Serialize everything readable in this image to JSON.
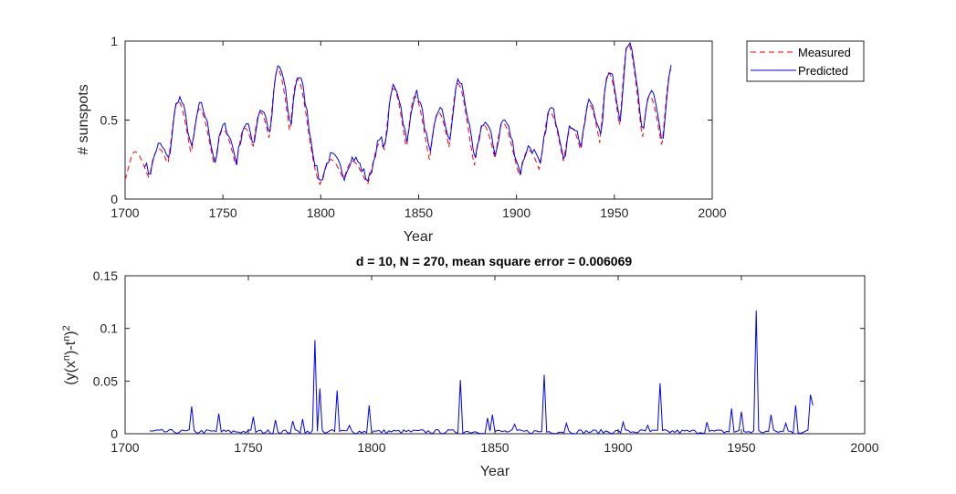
{
  "chart_data": [
    {
      "type": "line",
      "title": "",
      "xlabel": "Year",
      "ylabel": "# sunspots",
      "xlim": [
        1700,
        2000
      ],
      "ylim": [
        0,
        1
      ],
      "xticks": [
        1700,
        1750,
        1800,
        1850,
        1900,
        1950,
        2000
      ],
      "xtick_labels": [
        "1700",
        "1750",
        "1800",
        "1850",
        "1900",
        "1950",
        "2000"
      ],
      "yticks": [
        0,
        0.5,
        1
      ],
      "ytick_labels": [
        "0",
        "0.5",
        "1"
      ],
      "grid": false,
      "legend": {
        "position": "outside-top-right",
        "entries": [
          "Measured",
          "Predicted"
        ]
      },
      "cycles": {
        "years": [
          1705,
          1717,
          1727,
          1738,
          1750,
          1761,
          1769,
          1778,
          1788,
          1805,
          1816,
          1830,
          1837,
          1848,
          1860,
          1870,
          1883,
          1893,
          1906,
          1917,
          1928,
          1937,
          1947,
          1957,
          1968,
          1979
        ],
        "peaks": [
          0.3,
          0.32,
          0.62,
          0.57,
          0.44,
          0.45,
          0.55,
          0.82,
          0.76,
          0.25,
          0.24,
          0.35,
          0.7,
          0.65,
          0.55,
          0.73,
          0.47,
          0.48,
          0.31,
          0.55,
          0.45,
          0.6,
          0.8,
          0.98,
          0.65,
          0.82
        ]
      },
      "series": [
        {
          "name": "Measured",
          "color": "#ff0000",
          "style": "dashed",
          "x_start": 1700,
          "x_end": 1979
        },
        {
          "name": "Predicted",
          "color": "#0000ff",
          "style": "solid",
          "x_start": 1710,
          "x_end": 1979
        }
      ]
    },
    {
      "type": "line",
      "title": "d = 10,  N = 270,  mean square error = 0.006069",
      "xlabel": "Year",
      "ylabel": "(y(x^n)-t^n)^2",
      "xlim": [
        1700,
        2000
      ],
      "ylim": [
        0,
        0.15
      ],
      "xticks": [
        1700,
        1750,
        1800,
        1850,
        1900,
        1950,
        2000
      ],
      "xtick_labels": [
        "1700",
        "1750",
        "1800",
        "1850",
        "1900",
        "1950",
        "2000"
      ],
      "yticks": [
        0,
        0.05,
        0.1,
        0.15
      ],
      "ytick_labels": [
        "0",
        "0.05",
        "0.1",
        "0.15"
      ],
      "grid": false,
      "series": [
        {
          "name": "",
          "color": "#0000ff",
          "style": "solid",
          "x_start": 1710,
          "x_end": 1979,
          "spikes": [
            {
              "x": 1727,
              "y": 0.026
            },
            {
              "x": 1738,
              "y": 0.019
            },
            {
              "x": 1752,
              "y": 0.016
            },
            {
              "x": 1761,
              "y": 0.013
            },
            {
              "x": 1768,
              "y": 0.012
            },
            {
              "x": 1772,
              "y": 0.014
            },
            {
              "x": 1777,
              "y": 0.089
            },
            {
              "x": 1779,
              "y": 0.043
            },
            {
              "x": 1786,
              "y": 0.041
            },
            {
              "x": 1791,
              "y": 0.008
            },
            {
              "x": 1799,
              "y": 0.027
            },
            {
              "x": 1836,
              "y": 0.051
            },
            {
              "x": 1847,
              "y": 0.015
            },
            {
              "x": 1849,
              "y": 0.018
            },
            {
              "x": 1858,
              "y": 0.009
            },
            {
              "x": 1870,
              "y": 0.056
            },
            {
              "x": 1879,
              "y": 0.01
            },
            {
              "x": 1902,
              "y": 0.011
            },
            {
              "x": 1912,
              "y": 0.008
            },
            {
              "x": 1917,
              "y": 0.048
            },
            {
              "x": 1936,
              "y": 0.011
            },
            {
              "x": 1946,
              "y": 0.024
            },
            {
              "x": 1950,
              "y": 0.021
            },
            {
              "x": 1956,
              "y": 0.117
            },
            {
              "x": 1962,
              "y": 0.018
            },
            {
              "x": 1968,
              "y": 0.01
            },
            {
              "x": 1972,
              "y": 0.027
            },
            {
              "x": 1978,
              "y": 0.037
            },
            {
              "x": 1979,
              "y": 0.027
            }
          ]
        }
      ]
    }
  ]
}
